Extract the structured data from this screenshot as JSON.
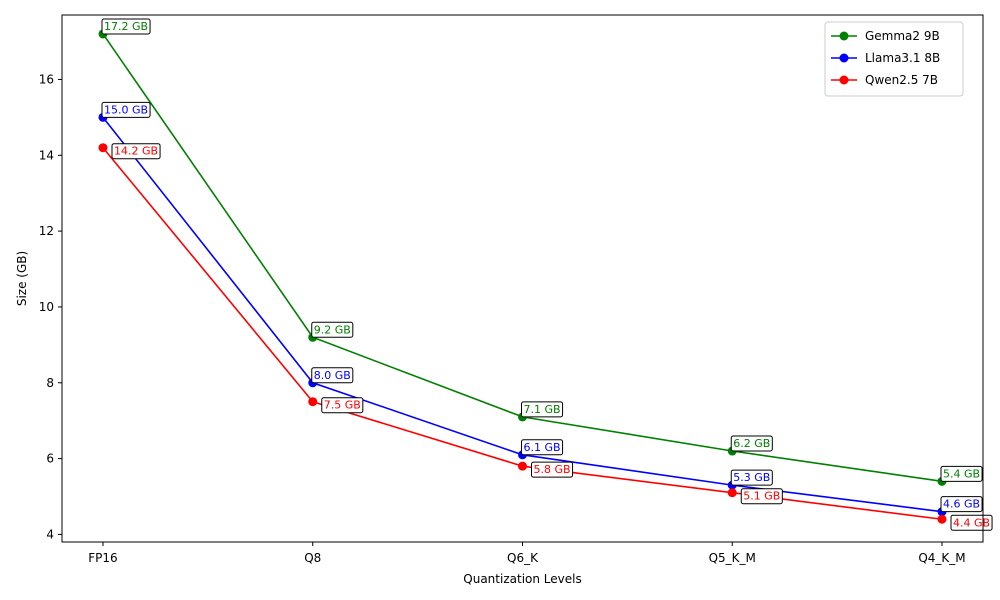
{
  "chart_data": {
    "type": "line",
    "xlabel": "Quantization Levels",
    "ylabel": "Size (GB)",
    "categories": [
      "FP16",
      "Q8",
      "Q6_K",
      "Q5_K_M",
      "Q4_K_M"
    ],
    "ylim": [
      3.8,
      17.7
    ],
    "yticks": [
      4,
      6,
      8,
      10,
      12,
      14,
      16
    ],
    "legend_position": "top-right",
    "grid": false,
    "series": [
      {
        "name": "Gemma2 9B",
        "color": "#008000",
        "values": [
          17.2,
          9.2,
          7.1,
          6.2,
          5.4
        ],
        "labels": [
          "17.2 GB",
          "9.2 GB",
          "7.1 GB",
          "6.2 GB",
          "5.4 GB"
        ]
      },
      {
        "name": "Llama3.1 8B",
        "color": "#0000ff",
        "values": [
          15.0,
          8.0,
          6.1,
          5.3,
          4.6
        ],
        "labels": [
          "15.0 GB",
          "8.0 GB",
          "6.1 GB",
          "5.3 GB",
          "4.6 GB"
        ]
      },
      {
        "name": "Qwen2.5 7B",
        "color": "#ff0000",
        "values": [
          14.2,
          7.5,
          5.8,
          5.1,
          4.4
        ],
        "labels": [
          "14.2 GB",
          "7.5 GB",
          "5.8 GB",
          "5.1 GB",
          "4.4 GB"
        ]
      }
    ]
  }
}
